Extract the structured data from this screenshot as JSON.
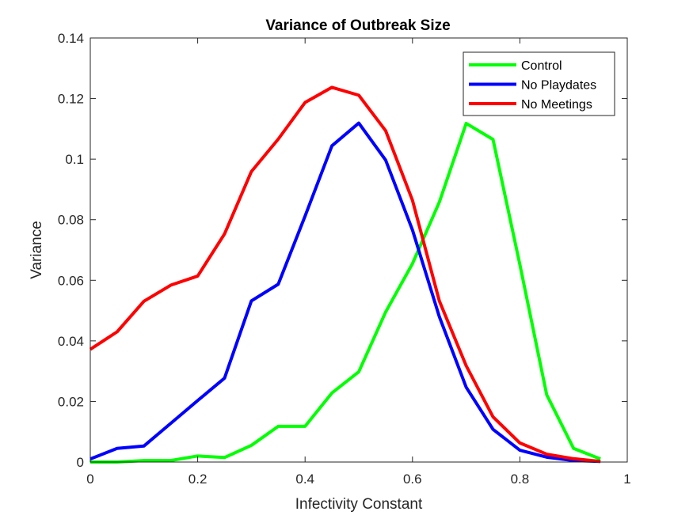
{
  "chart_data": {
    "type": "line",
    "title": "Variance of Outbreak Size",
    "xlabel": "Infectivity Constant",
    "ylabel": "Variance",
    "xlim": [
      0,
      1
    ],
    "ylim": [
      0,
      0.14
    ],
    "xticks": [
      "0",
      "0.2",
      "0.4",
      "0.6",
      "0.8",
      "1"
    ],
    "yticks": [
      "0",
      "0.02",
      "0.04",
      "0.06",
      "0.08",
      "0.1",
      "0.12",
      "0.14"
    ],
    "legend_position": "top-right",
    "grid": false,
    "x": [
      0,
      0.05,
      0.1,
      0.15,
      0.2,
      0.25,
      0.3,
      0.35,
      0.4,
      0.45,
      0.5,
      0.55,
      0.6,
      0.65,
      0.7,
      0.75,
      0.8,
      0.85,
      0.9,
      0.95
    ],
    "series": [
      {
        "name": "Control",
        "color": "#00ff00",
        "values": [
          0,
          0,
          0.0005,
          0.0005,
          0.002,
          0.0015,
          0.0055,
          0.0118,
          0.0118,
          0.0228,
          0.0298,
          0.0495,
          0.0655,
          0.0858,
          0.1118,
          0.1065,
          0.0652,
          0.0222,
          0.0045,
          0.001
        ]
      },
      {
        "name": "No Playdates",
        "color": "#0000ff",
        "values": [
          0.001,
          0.0045,
          0.0053,
          0.0128,
          0.0203,
          0.0277,
          0.0532,
          0.0587,
          0.0812,
          0.1044,
          0.1119,
          0.0997,
          0.0766,
          0.048,
          0.0247,
          0.0108,
          0.0039,
          0.0016,
          0.0005,
          0.0002
        ]
      },
      {
        "name": "No Meetings",
        "color": "#ff0000",
        "values": [
          0.0372,
          0.043,
          0.0531,
          0.0584,
          0.0614,
          0.0753,
          0.0959,
          0.1066,
          0.1187,
          0.1237,
          0.1211,
          0.1094,
          0.0864,
          0.0532,
          0.0318,
          0.0149,
          0.0063,
          0.0026,
          0.0011,
          0.0002
        ]
      }
    ]
  }
}
